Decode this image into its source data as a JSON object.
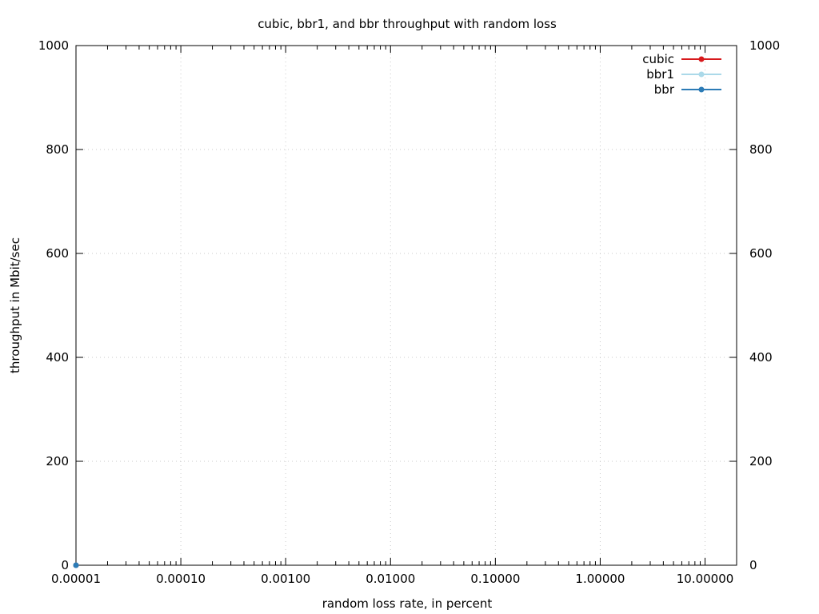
{
  "chart_data": {
    "type": "line",
    "title": "cubic, bbr1, and bbr throughput with random loss",
    "xlabel": "random loss rate, in percent",
    "ylabel": "throughput in Mbit/sec",
    "x_scale": "log",
    "xlim": [
      1e-05,
      20
    ],
    "ylim": [
      0,
      1000
    ],
    "x_ticks": [
      {
        "value": 1e-05,
        "label": "0.00001"
      },
      {
        "value": 0.0001,
        "label": "0.00010"
      },
      {
        "value": 0.001,
        "label": "0.00100"
      },
      {
        "value": 0.01,
        "label": "0.01000"
      },
      {
        "value": 0.1,
        "label": "0.10000"
      },
      {
        "value": 1,
        "label": "1.00000"
      },
      {
        "value": 10,
        "label": "10.00000"
      }
    ],
    "y_ticks": [
      {
        "value": 0,
        "label": "0"
      },
      {
        "value": 200,
        "label": "200"
      },
      {
        "value": 400,
        "label": "400"
      },
      {
        "value": 600,
        "label": "600"
      },
      {
        "value": 800,
        "label": "800"
      },
      {
        "value": 1000,
        "label": "1000"
      }
    ],
    "y2_ticks_mirror": true,
    "grid": true,
    "legend_position": "top-right",
    "series": [
      {
        "name": "cubic",
        "color": "#d7191c",
        "points": [
          {
            "x": 1e-05,
            "y": 0
          }
        ]
      },
      {
        "name": "bbr1",
        "color": "#abd9e9",
        "points": [
          {
            "x": 1e-05,
            "y": 0
          }
        ]
      },
      {
        "name": "bbr",
        "color": "#2c7bb6",
        "points": [
          {
            "x": 1e-05,
            "y": 0
          }
        ]
      }
    ]
  }
}
